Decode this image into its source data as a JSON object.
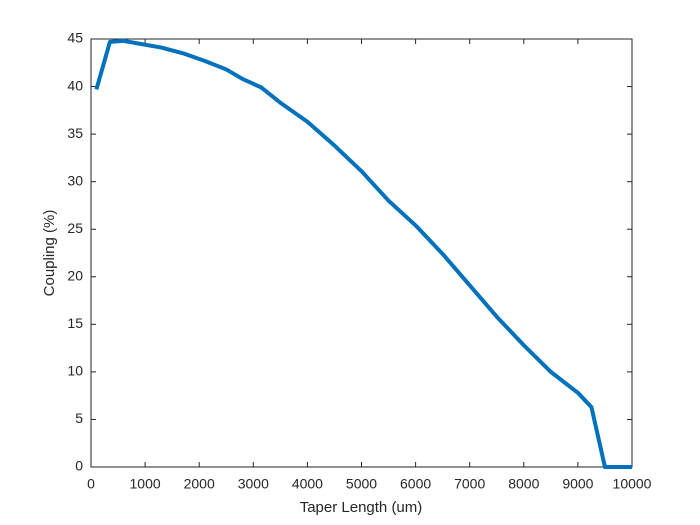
{
  "chart_data": {
    "type": "line",
    "x_label": "Taper Length (um)",
    "y_label": "Coupling (%)",
    "x": [
      100,
      350,
      600,
      900,
      1300,
      1700,
      2100,
      2500,
      2800,
      3150,
      3500,
      4000,
      4500,
      5000,
      5500,
      6000,
      6500,
      7000,
      7500,
      8000,
      8500,
      9000,
      9250,
      9500,
      10000
    ],
    "series": [
      {
        "name": "Coupling",
        "color": "#0072bd",
        "values": [
          39.7,
          44.7,
          44.8,
          44.5,
          44.1,
          43.5,
          42.7,
          41.8,
          40.8,
          39.9,
          38.3,
          36.3,
          33.8,
          31.1,
          28.0,
          25.4,
          22.4,
          19.1,
          15.8,
          12.8,
          10.0,
          7.8,
          6.3,
          0,
          0
        ]
      }
    ],
    "xlim": [
      0,
      10000
    ],
    "xticks": [
      0,
      1000,
      2000,
      3000,
      4000,
      5000,
      6000,
      7000,
      8000,
      9000,
      10000
    ],
    "ylim": [
      0,
      45
    ],
    "yticks": [
      0,
      5,
      10,
      15,
      20,
      25,
      30,
      35,
      40,
      45
    ],
    "grid": false
  }
}
